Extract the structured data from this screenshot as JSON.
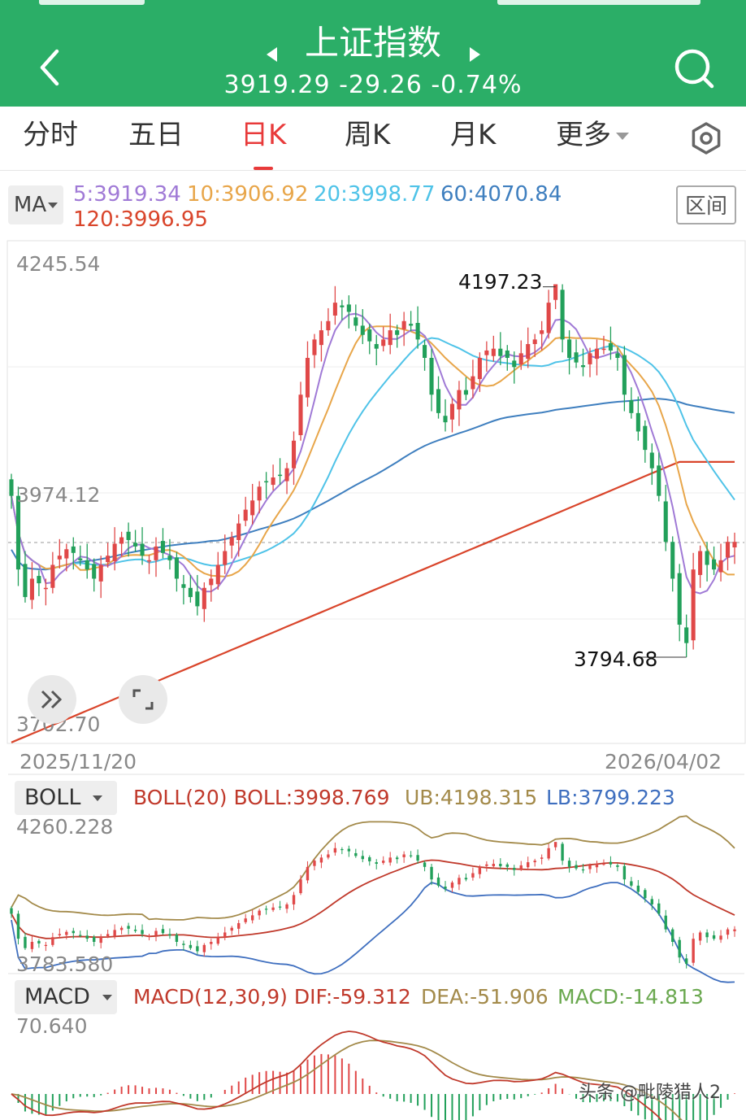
{
  "header": {
    "title": "上证指数",
    "price": "3919.29",
    "change": "-29.26",
    "change_pct": "-0.74%",
    "colors": {
      "bg": "#2bae67",
      "text": "#ffffff"
    }
  },
  "tabs": [
    {
      "label": "分时"
    },
    {
      "label": "五日"
    },
    {
      "label": "日K",
      "active": true
    },
    {
      "label": "周K"
    },
    {
      "label": "月K"
    },
    {
      "label": "更多"
    }
  ],
  "ma_legend": {
    "selector": "MA",
    "range_button": "区间",
    "items": [
      {
        "text": "5:3919.34",
        "color": "#a07ad6"
      },
      {
        "text": "10:3906.92",
        "color": "#e8a64a"
      },
      {
        "text": "20:3998.77",
        "color": "#4fc3e8"
      },
      {
        "text": "60:4070.84",
        "color": "#3f7fbf"
      },
      {
        "text": "120:3996.95",
        "color": "#d9452b"
      }
    ]
  },
  "main_chart": {
    "y_top": "4245.54",
    "y_mid": "3974.12",
    "y_bottom": "3702.70",
    "max_label": "4197.23",
    "min_label": "3794.68",
    "date_start": "2025/11/20",
    "date_end": "2026/04/02"
  },
  "boll": {
    "selector": "BOLL",
    "params": "BOLL(20)",
    "mid": "BOLL:3998.769",
    "ub": "UB:4198.315",
    "lb": "LB:3799.223",
    "y_top": "4260.228",
    "y_bottom": "3783.580",
    "colors": {
      "mid": "#c0392b",
      "ub": "#a38a4a",
      "lb": "#3f6fbf"
    }
  },
  "macd": {
    "selector": "MACD",
    "params": "MACD(12,30,9)",
    "dif": "DIF:-59.312",
    "dea": "DEA:-51.906",
    "macd": "MACD:-14.813",
    "y_top": "70.640",
    "colors": {
      "dif": "#c0392b",
      "dea": "#a38a4a",
      "macd": "#6aa84f"
    }
  },
  "watermark": "头条 @毗陵猎人2",
  "chart_data": {
    "type": "candlestick",
    "title": "上证指数",
    "x_range": [
      "2025/11/20",
      "2026/04/02"
    ],
    "ylim": [
      3702.7,
      4245.54
    ],
    "high": 4197.23,
    "low": 3794.68,
    "last_close": 3919.29,
    "ma": {
      "MA5": 3919.34,
      "MA10": 3906.92,
      "MA20": 3998.77,
      "MA60": 4070.84,
      "MA120": 3996.95
    },
    "boll": {
      "mid": 3998.769,
      "ub": 4198.315,
      "lb": 3799.223
    },
    "macd": {
      "dif": -59.312,
      "dea": -51.906,
      "macd": -14.813
    },
    "closes": [
      3970,
      3890,
      3860,
      3880,
      3875,
      3870,
      3895,
      3905,
      3912,
      3908,
      3900,
      3890,
      3880,
      3895,
      3905,
      3918,
      3925,
      3922,
      3915,
      3905,
      3900,
      3915,
      3908,
      3900,
      3880,
      3870,
      3860,
      3850,
      3870,
      3880,
      3895,
      3910,
      3925,
      3940,
      3955,
      3965,
      3980,
      3985,
      3990,
      3992,
      4000,
      4030,
      4080,
      4120,
      4140,
      4150,
      4160,
      4180,
      4175,
      4170,
      4155,
      4145,
      4138,
      4130,
      4140,
      4150,
      4145,
      4160,
      4155,
      4140,
      4120,
      4080,
      4060,
      4050,
      4070,
      4085,
      4080,
      4100,
      4120,
      4128,
      4130,
      4122,
      4120,
      4110,
      4125,
      4135,
      4140,
      4150,
      4180,
      4200,
      4140,
      4120,
      4115,
      4110,
      4125,
      4130,
      4130,
      4128,
      4120,
      4080,
      4060,
      4040,
      4020,
      4000,
      3970,
      3920,
      3880,
      3830,
      3810,
      3890,
      3910,
      3895,
      3890,
      3900,
      3920,
      3920
    ]
  }
}
